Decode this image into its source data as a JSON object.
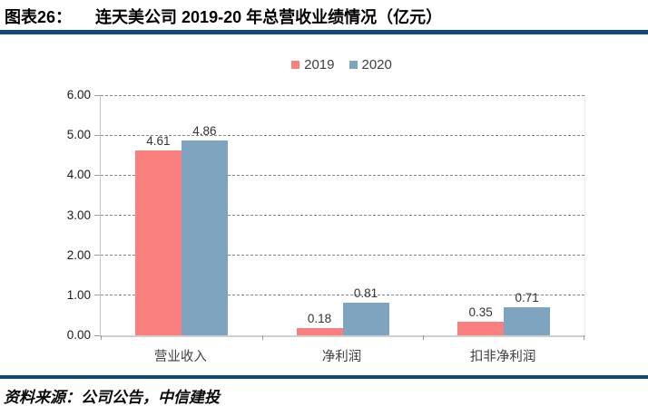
{
  "header": {
    "label": "图表26：",
    "title": "连天美公司 2019-20 年总营收业绩情况（亿元）"
  },
  "legend": [
    {
      "name": "2019",
      "color": "#FA8080"
    },
    {
      "name": "2020",
      "color": "#7FA4BF"
    }
  ],
  "chart_data": {
    "type": "bar",
    "categories": [
      "营业收入",
      "净利润",
      "扣非净利润"
    ],
    "series": [
      {
        "name": "2019",
        "color": "#FA8080",
        "values": [
          4.61,
          0.18,
          0.35
        ]
      },
      {
        "name": "2020",
        "color": "#7FA4BF",
        "values": [
          4.86,
          0.81,
          0.71
        ]
      }
    ],
    "ylim": [
      0,
      6
    ],
    "ytick_step": 1,
    "ytick_decimals": 2,
    "value_label_decimals": 2,
    "grid": "horizontal-dashed",
    "legend_position": "top-center",
    "title": "连天美公司 2019-20 年总营收业绩情况（亿元）",
    "xlabel": "",
    "ylabel": ""
  },
  "footer": {
    "source": "资料来源：公司公告，中信建投"
  },
  "colors": {
    "rule": "#11497B",
    "axis": "#C6C6C6",
    "grid": "#858585",
    "bar_2019": "#FA8080",
    "bar_2020": "#7FA4BF"
  }
}
